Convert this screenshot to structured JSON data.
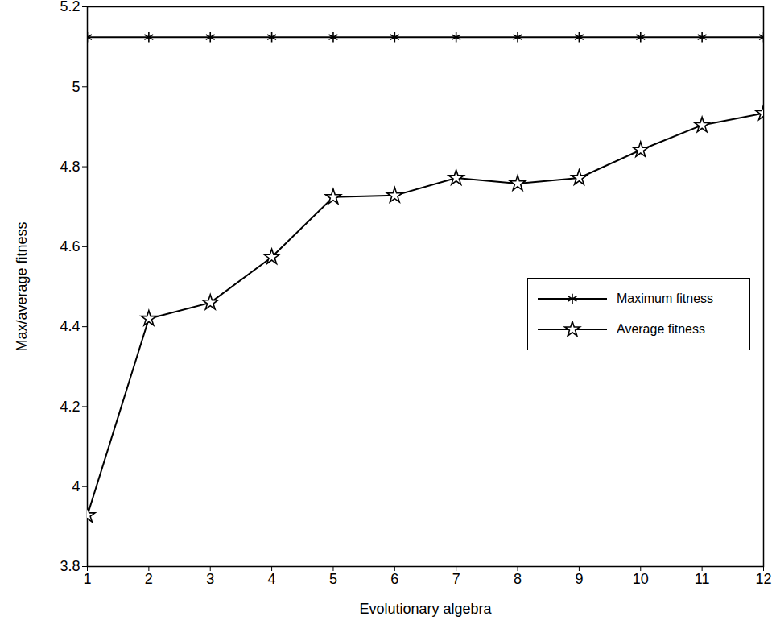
{
  "chart_data": {
    "type": "line",
    "x_label": "Evolutionary algebra",
    "y_label": "Max/average fitness",
    "x": [
      1,
      2,
      3,
      4,
      5,
      6,
      7,
      8,
      9,
      10,
      11,
      12
    ],
    "series": [
      {
        "name": "Maximum fitness",
        "color": "#000000",
        "marker": "asterisk",
        "values": [
          5.124,
          5.124,
          5.124,
          5.124,
          5.124,
          5.124,
          5.124,
          5.124,
          5.124,
          5.124,
          5.124,
          5.124
        ]
      },
      {
        "name": "Average fitness",
        "color": "#000000",
        "marker": "star",
        "values": [
          3.928,
          4.42,
          4.46,
          4.574,
          4.724,
          4.728,
          4.772,
          4.758,
          4.772,
          4.842,
          4.904,
          4.934
        ]
      }
    ],
    "xlim": [
      1,
      12
    ],
    "xticks": [
      1,
      2,
      3,
      4,
      5,
      6,
      7,
      8,
      9,
      10,
      11,
      12
    ],
    "ylim": [
      3.8,
      5.2
    ],
    "yticks": [
      3.8,
      4,
      4.2,
      4.4,
      4.6,
      4.8,
      5,
      5.2
    ],
    "grid": false,
    "legend": "right"
  }
}
